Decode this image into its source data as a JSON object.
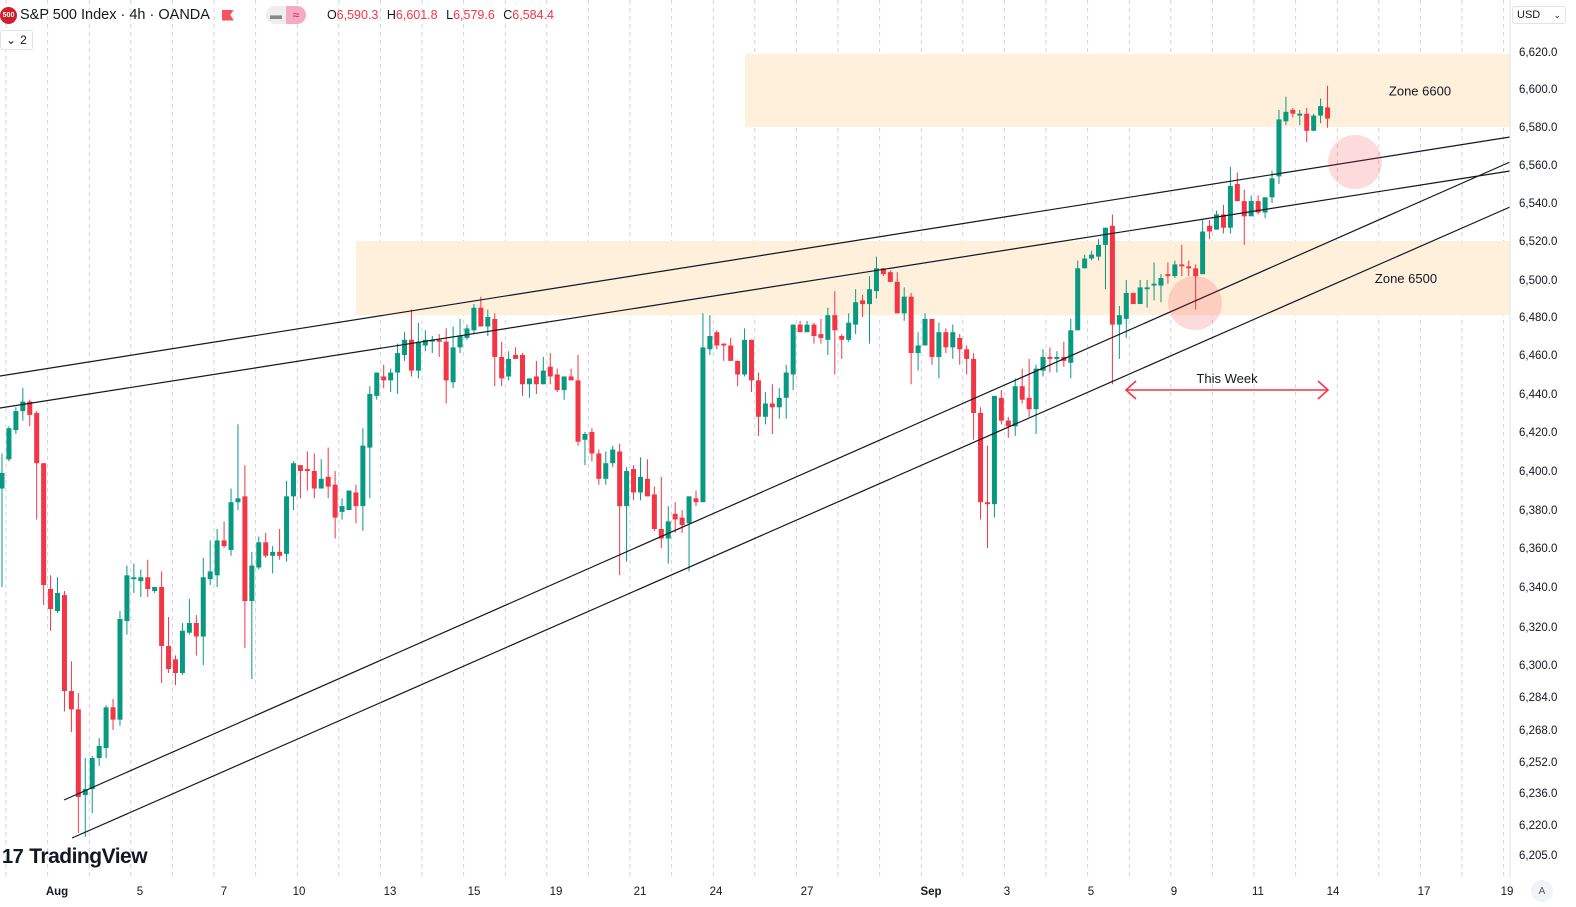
{
  "header": {
    "symbol_badge": "500",
    "title": "S&P 500 Index · 4h · OANDA",
    "ohlc": [
      {
        "key": "O",
        "value": "6,590.3"
      },
      {
        "key": "H",
        "value": "6,601.8"
      },
      {
        "key": "L",
        "value": "6,579.6"
      },
      {
        "key": "C",
        "value": "6,584.4"
      }
    ],
    "collapse_count": "2",
    "currency": "USD"
  },
  "branding": {
    "logo_text": "TradingView"
  },
  "auto_scale_label": "A",
  "colors": {
    "up": "#089981",
    "down": "#F23645",
    "zone": "#FFF0DC",
    "marker": "#F7C5CC",
    "arrow": "#F23645"
  },
  "chart_data": {
    "type": "candlestick",
    "timeframe": "4h",
    "x_tick_labels": [
      "Aug",
      "5",
      "7",
      "10",
      "13",
      "15",
      "19",
      "21",
      "24",
      "27",
      "Sep",
      "3",
      "5",
      "9",
      "11",
      "14",
      "17",
      "19"
    ],
    "y_tick_labels": [
      "6,620.0",
      "6,600.0",
      "6,580.0",
      "6,560.0",
      "6,540.0",
      "6,520.0",
      "6,500.0",
      "6,480.0",
      "6,460.0",
      "6,440.0",
      "6,420.0",
      "6,400.0",
      "6,380.0",
      "6,360.0",
      "6,340.0",
      "6,320.0",
      "6,300.0",
      "6,284.0",
      "6,268.0",
      "6,252.0",
      "6,236.0",
      "6,220.0",
      "6,205.0"
    ],
    "y_ticks": [
      6620,
      6600,
      6580,
      6560,
      6540,
      6520,
      6500,
      6480,
      6460,
      6440,
      6420,
      6400,
      6380,
      6360,
      6340,
      6320,
      6300,
      6284,
      6268,
      6252,
      6236,
      6220,
      6205
    ],
    "grid": "vertical dashed",
    "zones": [
      {
        "label": "Zone 6600",
        "low": 6580,
        "high": 6619
      },
      {
        "label": "Zone 6500",
        "low": 6481,
        "high": 6520
      }
    ],
    "annotation": {
      "label": "This Week"
    },
    "ohlc": [
      [
        6391,
        6409,
        6340,
        6399
      ],
      [
        6406,
        6423,
        6405,
        6422
      ],
      [
        6421,
        6433,
        6419,
        6431
      ],
      [
        6431,
        6443,
        6426,
        6436
      ],
      [
        6436,
        6437,
        6423,
        6429
      ],
      [
        6430,
        6431,
        6375,
        6404
      ],
      [
        6404,
        6404,
        6331,
        6341
      ],
      [
        6339,
        6346,
        6318,
        6329
      ],
      [
        6328,
        6345,
        6327,
        6337
      ],
      [
        6336,
        6338,
        6277,
        6287
      ],
      [
        6287,
        6302,
        6267,
        6278
      ],
      [
        6278,
        6286,
        6216,
        6234
      ],
      [
        6235,
        6254,
        6214,
        6238
      ],
      [
        6238,
        6255,
        6226,
        6254
      ],
      [
        6254,
        6264,
        6250,
        6260
      ],
      [
        6259,
        6280,
        6254,
        6279
      ],
      [
        6279,
        6283,
        6268,
        6273
      ],
      [
        6273,
        6328,
        6270,
        6324
      ],
      [
        6323,
        6351,
        6316,
        6346
      ],
      [
        6344,
        6352,
        6337,
        6345
      ],
      [
        6343,
        6349,
        6335,
        6345
      ],
      [
        6345,
        6354,
        6335,
        6339
      ],
      [
        6338,
        6340,
        6337,
        6340
      ],
      [
        6340,
        6348,
        6291,
        6310
      ],
      [
        6310,
        6325,
        6296,
        6298
      ],
      [
        6303,
        6305,
        6290,
        6296
      ],
      [
        6296,
        6322,
        6295,
        6318
      ],
      [
        6317,
        6334,
        6316,
        6322
      ],
      [
        6322,
        6326,
        6305,
        6315
      ],
      [
        6315,
        6355,
        6300,
        6345
      ],
      [
        6344,
        6364,
        6341,
        6348
      ],
      [
        6346,
        6370,
        6340,
        6364
      ],
      [
        6364,
        6374,
        6360,
        6361
      ],
      [
        6359,
        6391,
        6356,
        6384
      ],
      [
        6384,
        6424,
        6380,
        6386
      ],
      [
        6387,
        6403,
        6309,
        6333
      ],
      [
        6333,
        6358,
        6293,
        6351
      ],
      [
        6350,
        6366,
        6349,
        6363
      ],
      [
        6363,
        6368,
        6355,
        6356
      ],
      [
        6356,
        6361,
        6347,
        6358
      ],
      [
        6358,
        6370,
        6354,
        6356
      ],
      [
        6357,
        6395,
        6353,
        6387
      ],
      [
        6387,
        6405,
        6380,
        6404
      ],
      [
        6403,
        6403,
        6386,
        6400
      ],
      [
        6401,
        6410,
        6390,
        6400
      ],
      [
        6400,
        6409,
        6386,
        6391
      ],
      [
        6391,
        6406,
        6391,
        6396
      ],
      [
        6397,
        6412,
        6386,
        6392
      ],
      [
        6393,
        6400,
        6365,
        6376
      ],
      [
        6379,
        6386,
        6375,
        6382
      ],
      [
        6380,
        6390,
        6380,
        6390
      ],
      [
        6389,
        6393,
        6373,
        6382
      ],
      [
        6382,
        6422,
        6369,
        6413
      ],
      [
        6412,
        6444,
        6386,
        6440
      ],
      [
        6439,
        6451,
        6437,
        6451
      ],
      [
        6449,
        6455,
        6443,
        6447
      ],
      [
        6447,
        6453,
        6441,
        6451
      ],
      [
        6451,
        6466,
        6440,
        6461
      ],
      [
        6460,
        6472,
        6457,
        6468
      ],
      [
        6468,
        6484,
        6449,
        6452
      ],
      [
        6452,
        6477,
        6448,
        6467
      ],
      [
        6465,
        6473,
        6462,
        6468
      ],
      [
        6467,
        6470,
        6461,
        6468
      ],
      [
        6468,
        6471,
        6459,
        6467
      ],
      [
        6467,
        6474,
        6435,
        6447
      ],
      [
        6446,
        6475,
        6443,
        6464
      ],
      [
        6464,
        6479,
        6461,
        6470
      ],
      [
        6469,
        6476,
        6468,
        6474
      ],
      [
        6473,
        6487,
        6471,
        6485
      ],
      [
        6485,
        6491,
        6475,
        6475
      ],
      [
        6475,
        6484,
        6470,
        6480
      ],
      [
        6479,
        6482,
        6444,
        6459
      ],
      [
        6459,
        6467,
        6444,
        6448
      ],
      [
        6449,
        6462,
        6447,
        6458
      ],
      [
        6460,
        6464,
        6458,
        6458
      ],
      [
        6460,
        6461,
        6439,
        6445
      ],
      [
        6445,
        6448,
        6438,
        6448
      ],
      [
        6449,
        6457,
        6440,
        6445
      ],
      [
        6445,
        6459,
        6445,
        6452
      ],
      [
        6454,
        6461,
        6445,
        6449
      ],
      [
        6450,
        6453,
        6441,
        6442
      ],
      [
        6442,
        6449,
        6437,
        6449
      ],
      [
        6449,
        6453,
        6447,
        6447
      ],
      [
        6447,
        6460,
        6413,
        6415
      ],
      [
        6416,
        6420,
        6403,
        6419
      ],
      [
        6420,
        6422,
        6405,
        6409
      ],
      [
        6409,
        6411,
        6393,
        6396
      ],
      [
        6396,
        6410,
        6393,
        6404
      ],
      [
        6404,
        6413,
        6402,
        6411
      ],
      [
        6410,
        6414,
        6346,
        6382
      ],
      [
        6382,
        6402,
        6353,
        6400
      ],
      [
        6401,
        6403,
        6385,
        6389
      ],
      [
        6389,
        6407,
        6385,
        6397
      ],
      [
        6396,
        6406,
        6387,
        6387
      ],
      [
        6388,
        6392,
        6369,
        6370
      ],
      [
        6370,
        6397,
        6360,
        6365
      ],
      [
        6365,
        6382,
        6352,
        6374
      ],
      [
        6378,
        6384,
        6368,
        6375
      ],
      [
        6376,
        6380,
        6368,
        6372
      ],
      [
        6373,
        6387,
        6348,
        6387
      ],
      [
        6386,
        6390,
        6382,
        6384
      ],
      [
        6384,
        6482,
        6384,
        6464
      ],
      [
        6463,
        6481,
        6460,
        6470
      ],
      [
        6472,
        6473,
        6463,
        6465
      ],
      [
        6466,
        6466,
        6457,
        6465
      ],
      [
        6465,
        6469,
        6457,
        6457
      ],
      [
        6457,
        6457,
        6444,
        6450
      ],
      [
        6450,
        6474,
        6449,
        6468
      ],
      [
        6468,
        6468,
        6441,
        6447
      ],
      [
        6447,
        6451,
        6418,
        6428
      ],
      [
        6428,
        6441,
        6424,
        6435
      ],
      [
        6435,
        6445,
        6419,
        6433
      ],
      [
        6433,
        6443,
        6427,
        6438
      ],
      [
        6438,
        6455,
        6427,
        6451
      ],
      [
        6450,
        6476,
        6442,
        6476
      ],
      [
        6476,
        6478,
        6472,
        6472
      ],
      [
        6472,
        6478,
        6472,
        6476
      ],
      [
        6476,
        6477,
        6466,
        6470
      ],
      [
        6471,
        6479,
        6466,
        6469
      ],
      [
        6468,
        6485,
        6460,
        6481
      ],
      [
        6481,
        6494,
        6450,
        6473
      ],
      [
        6470,
        6471,
        6458,
        6468
      ],
      [
        6468,
        6482,
        6467,
        6477
      ],
      [
        6476,
        6495,
        6471,
        6488
      ],
      [
        6489,
        6492,
        6480,
        6487
      ],
      [
        6487,
        6502,
        6466,
        6495
      ],
      [
        6494,
        6512,
        6490,
        6506
      ],
      [
        6506,
        6506,
        6502,
        6503
      ],
      [
        6504,
        6505,
        6499,
        6499
      ],
      [
        6499,
        6504,
        6482,
        6482
      ],
      [
        6482,
        6496,
        6478,
        6491
      ],
      [
        6491,
        6493,
        6445,
        6461
      ],
      [
        6461,
        6472,
        6452,
        6465
      ],
      [
        6465,
        6482,
        6465,
        6479
      ],
      [
        6479,
        6479,
        6455,
        6459
      ],
      [
        6459,
        6477,
        6448,
        6472
      ],
      [
        6472,
        6474,
        6461,
        6464
      ],
      [
        6464,
        6476,
        6458,
        6472
      ],
      [
        6469,
        6471,
        6455,
        6463
      ],
      [
        6463,
        6465,
        6450,
        6458
      ],
      [
        6458,
        6461,
        6416,
        6430
      ],
      [
        6430,
        6433,
        6375,
        6384
      ],
      [
        6384,
        6413,
        6360,
        6383
      ],
      [
        6383,
        6439,
        6376,
        6439
      ],
      [
        6438,
        6442,
        6424,
        6426
      ],
      [
        6426,
        6428,
        6417,
        6423
      ],
      [
        6423,
        6448,
        6418,
        6444
      ],
      [
        6444,
        6453,
        6435,
        6437
      ],
      [
        6438,
        6458,
        6428,
        6432
      ],
      [
        6432,
        6455,
        6419,
        6453
      ],
      [
        6452,
        6463,
        6449,
        6459
      ],
      [
        6459,
        6464,
        6451,
        6458
      ],
      [
        6458,
        6462,
        6451,
        6459
      ],
      [
        6459,
        6467,
        6454,
        6457
      ],
      [
        6456,
        6479,
        6448,
        6473
      ],
      [
        6473,
        6510,
        6473,
        6506
      ],
      [
        6506,
        6513,
        6506,
        6511
      ],
      [
        6511,
        6515,
        6510,
        6513
      ],
      [
        6512,
        6521,
        6510,
        6518
      ],
      [
        6518,
        6527,
        6495,
        6527
      ],
      [
        6528,
        6534,
        6445,
        6476
      ],
      [
        6476,
        6486,
        6458,
        6481
      ],
      [
        6479,
        6500,
        6469,
        6493
      ],
      [
        6493,
        6493,
        6487,
        6487
      ],
      [
        6487,
        6500,
        6487,
        6496
      ],
      [
        6495,
        6500,
        6485,
        6496
      ],
      [
        6497,
        6509,
        6489,
        6498
      ],
      [
        6497,
        6503,
        6488,
        6501
      ],
      [
        6503,
        6509,
        6498,
        6502
      ],
      [
        6502,
        6510,
        6501,
        6508
      ],
      [
        6508,
        6518,
        6502,
        6507
      ],
      [
        6507,
        6510,
        6502,
        6506
      ],
      [
        6506,
        6508,
        6484,
        6502
      ],
      [
        6503,
        6531,
        6503,
        6525
      ],
      [
        6528,
        6531,
        6521,
        6525
      ],
      [
        6526,
        6536,
        6526,
        6534
      ],
      [
        6534,
        6539,
        6524,
        6527
      ],
      [
        6527,
        6559,
        6524,
        6549
      ],
      [
        6550,
        6556,
        6541,
        6541
      ],
      [
        6541,
        6547,
        6518,
        6533
      ],
      [
        6533,
        6544,
        6533,
        6541
      ],
      [
        6541,
        6544,
        6534,
        6535
      ],
      [
        6535,
        6543,
        6532,
        6543
      ],
      [
        6543,
        6557,
        6540,
        6553
      ],
      [
        6554,
        6589,
        6550,
        6584
      ],
      [
        6583,
        6596,
        6581,
        6588
      ],
      [
        6589,
        6590,
        6585,
        6587
      ],
      [
        6586,
        6589,
        6581,
        6587
      ],
      [
        6587,
        6590,
        6572,
        6578
      ],
      [
        6578,
        6587,
        6578,
        6586
      ],
      [
        6586,
        6595,
        6582,
        6591
      ],
      [
        6590.3,
        6601.8,
        6579.6,
        6584.4
      ]
    ]
  }
}
